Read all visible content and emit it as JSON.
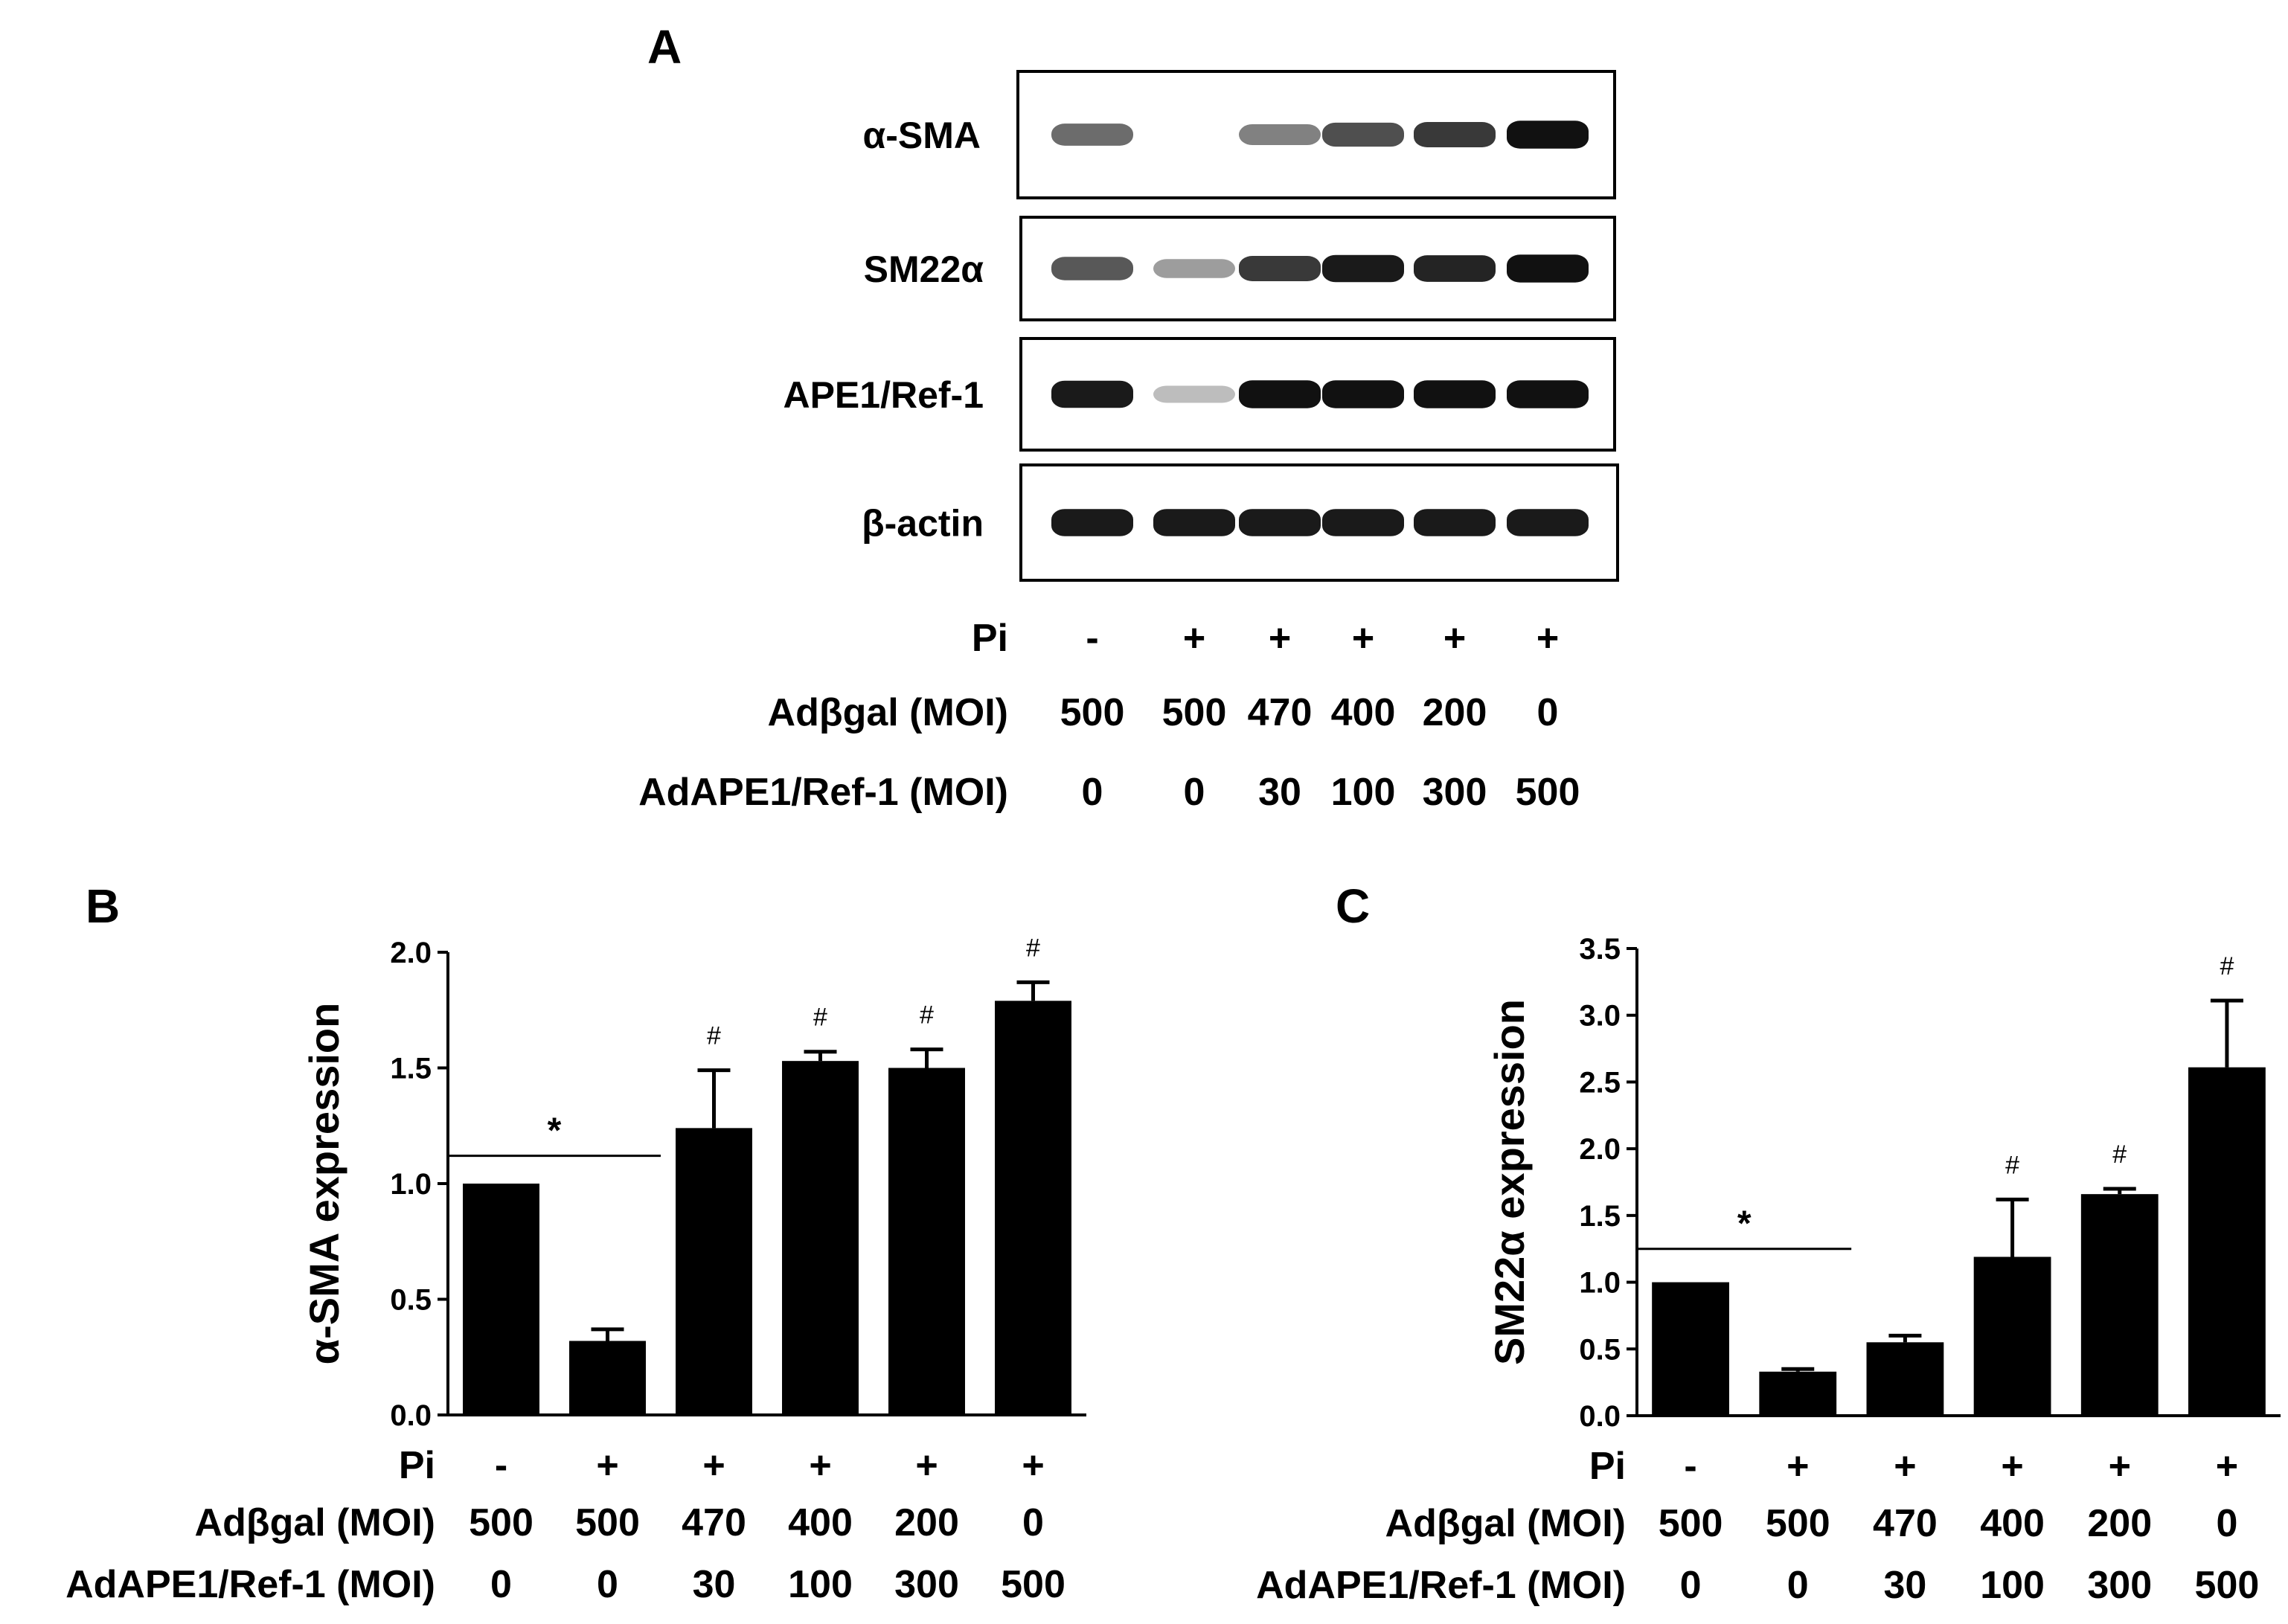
{
  "panel_a": {
    "label": "A",
    "blots": [
      {
        "name": "α-SMA",
        "intensity": [
          0.55,
          0.0,
          0.45,
          0.7,
          0.8,
          1.0
        ]
      },
      {
        "name": "SM22α",
        "intensity": [
          0.65,
          0.3,
          0.8,
          0.95,
          0.9,
          1.0
        ]
      },
      {
        "name": "APE1/Ref-1",
        "intensity": [
          0.95,
          0.15,
          1.0,
          1.0,
          1.0,
          1.0
        ]
      },
      {
        "name": "β-actin",
        "intensity": [
          0.95,
          0.95,
          0.95,
          0.95,
          0.95,
          0.95
        ]
      }
    ],
    "conditions": {
      "pi_label": "Pi",
      "pi": [
        "-",
        "+",
        "+",
        "+",
        "+",
        "+"
      ],
      "adbgal_label": "Adβgal (MOI)",
      "adbgal": [
        "500",
        "500",
        "470",
        "400",
        "200",
        "0"
      ],
      "adape_label": "AdAPE1/Ref-1 (MOI)",
      "adape": [
        "0",
        "0",
        "30",
        "100",
        "300",
        "500"
      ]
    }
  },
  "chart_data": [
    {
      "panel": "B",
      "type": "bar",
      "categories": [
        "1",
        "2",
        "3",
        "4",
        "5",
        "6"
      ],
      "values": [
        1.0,
        0.32,
        1.24,
        1.53,
        1.5,
        1.79
      ],
      "errors": [
        0.0,
        0.05,
        0.25,
        0.04,
        0.08,
        0.08
      ],
      "marks": [
        "",
        "",
        "#",
        "#",
        "#",
        "#"
      ],
      "significance": {
        "symbol": "*",
        "from": 0,
        "to": 1,
        "y": 1.12
      },
      "ylabel": "α-SMA expression",
      "ylim": [
        0,
        2.0
      ],
      "yticks": [
        "0.0",
        "0.5",
        "1.0",
        "1.5",
        "2.0"
      ],
      "pi": [
        "-",
        "+",
        "+",
        "+",
        "+",
        "+"
      ],
      "adbgal_label": "Adβgal (MOI)",
      "adbgal": [
        "500",
        "500",
        "470",
        "400",
        "200",
        "0"
      ],
      "adape_label": "AdAPE1/Ref-1 (MOI)",
      "adape": [
        "0",
        "0",
        "30",
        "100",
        "300",
        "500"
      ],
      "pi_label": "Pi"
    },
    {
      "panel": "C",
      "type": "bar",
      "categories": [
        "1",
        "2",
        "3",
        "4",
        "5",
        "6"
      ],
      "values": [
        1.0,
        0.33,
        0.55,
        1.19,
        1.66,
        2.61
      ],
      "errors": [
        0.0,
        0.02,
        0.05,
        0.43,
        0.04,
        0.5
      ],
      "marks": [
        "",
        "",
        "",
        "#",
        "#",
        "#"
      ],
      "significance": {
        "symbol": "*",
        "from": 0,
        "to": 1,
        "y": 1.25
      },
      "ylabel": "SM22α expression",
      "ylim": [
        0,
        3.5
      ],
      "yticks": [
        "0.0",
        "0.5",
        "1.0",
        "1.5",
        "2.0",
        "2.5",
        "3.0",
        "3.5"
      ],
      "pi": [
        "-",
        "+",
        "+",
        "+",
        "+",
        "+"
      ],
      "adbgal_label": "Adβgal (MOI)",
      "adbgal": [
        "500",
        "500",
        "470",
        "400",
        "200",
        "0"
      ],
      "adape_label": "AdAPE1/Ref-1 (MOI)",
      "adape": [
        "0",
        "0",
        "30",
        "100",
        "300",
        "500"
      ],
      "pi_label": "Pi"
    }
  ],
  "panel_labels": {
    "b": "B",
    "c": "C"
  }
}
